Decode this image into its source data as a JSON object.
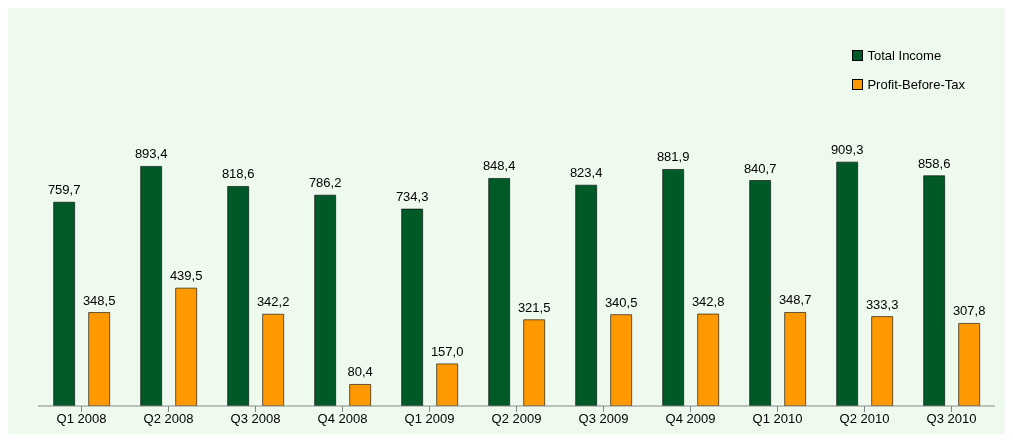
{
  "chart_data": {
    "type": "bar",
    "categories": [
      "Q1 2008",
      "Q2 2008",
      "Q3 2008",
      "Q4 2008",
      "Q1 2009",
      "Q2 2009",
      "Q3 2009",
      "Q4 2009",
      "Q1 2010",
      "Q2 2010",
      "Q3 2010"
    ],
    "series": [
      {
        "name": "Total Income",
        "color": "#005a28",
        "values": [
          759.7,
          893.4,
          818.6,
          786.2,
          734.3,
          848.4,
          823.4,
          881.9,
          840.7,
          909.3,
          858.6
        ],
        "value_labels": [
          "759,7",
          "893,4",
          "818,6",
          "786,2",
          "734,3",
          "848,4",
          "823,4",
          "881,9",
          "840,7",
          "909,3",
          "858,6"
        ]
      },
      {
        "name": "Profit-Before-Tax",
        "color": "#ff9900",
        "values": [
          348.5,
          439.5,
          342.2,
          80.4,
          157.0,
          321.5,
          340.5,
          342.8,
          348.7,
          333.3,
          307.8
        ],
        "value_labels": [
          "348,5",
          "439,5",
          "342,2",
          "80,4",
          "157,0",
          "321,5",
          "340,5",
          "342,8",
          "348,7",
          "333,3",
          "307,8"
        ]
      }
    ],
    "legend": "top right",
    "tick_labels": "x"
  }
}
